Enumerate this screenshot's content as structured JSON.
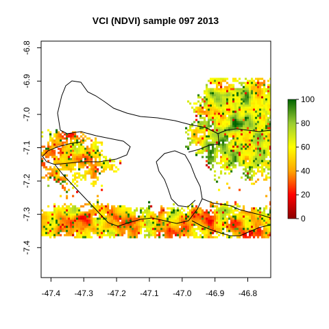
{
  "chart_data": {
    "type": "heatmap",
    "title": "VCI (NDVI) sample 097 2013",
    "xlabel": "",
    "ylabel": "",
    "xlim": [
      -47.43,
      -46.73
    ],
    "ylim": [
      -7.49,
      -6.78
    ],
    "x_ticks": [
      "-47.4",
      "-47.3",
      "-47.2",
      "-47.1",
      "-47.0",
      "-46.9",
      "-46.8"
    ],
    "y_ticks": [
      "-6.8",
      "-6.9",
      "-7.0",
      "-7.1",
      "-7.2",
      "-7.3",
      "-7.4"
    ],
    "raster_extent": {
      "xmin": -47.43,
      "xmax": -46.73,
      "ymin": -7.37,
      "ymax": -6.89
    },
    "colorbar": {
      "range": [
        0,
        100
      ],
      "ticks": [
        "100",
        "80",
        "60",
        "40",
        "20",
        "0"
      ],
      "colors": [
        "#8b0000",
        "#ff0000",
        "#ffa500",
        "#ffff00",
        "#9acd32",
        "#006400"
      ]
    },
    "grid": false,
    "legend_position": "right",
    "high_values_region": "north-east",
    "boundary_lines_color": "#000000"
  }
}
